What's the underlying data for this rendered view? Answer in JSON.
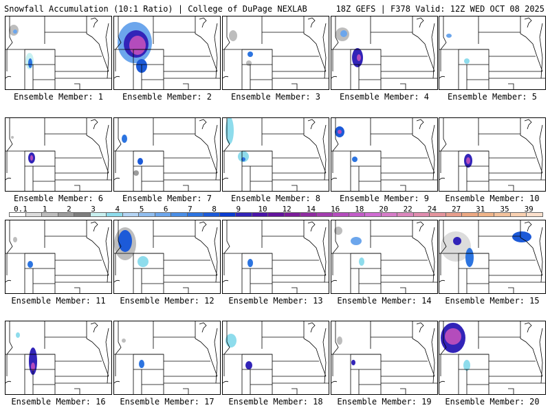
{
  "header": {
    "title": "Snowfall Accumulation (10:1 Ratio) | College of DuPage NEXLAB",
    "run_info": "18Z GEFS | F378 Valid: 12Z WED OCT 08 2025"
  },
  "legend": {
    "ticks": [
      "0.1",
      "1",
      "2",
      "3",
      "4",
      "5",
      "6",
      "7",
      "8",
      "9",
      "10",
      "12",
      "14",
      "16",
      "18",
      "20",
      "22",
      "24",
      "27",
      "31",
      "35",
      "39"
    ],
    "colors": [
      "#ffffff",
      "#dcdcdc",
      "#bdbdbd",
      "#9c9c9c",
      "#7d7d7d",
      "#c8f0f0",
      "#8edcec",
      "#b4d4f4",
      "#90bef0",
      "#6ca6ec",
      "#4a8ee6",
      "#2c74e0",
      "#1c5ad8",
      "#0a3cd0",
      "#3224b8",
      "#4a14a8",
      "#62149c",
      "#7a1c98",
      "#8e2ca0",
      "#a23cae",
      "#b44cbc",
      "#c25cc8",
      "#d06cd2",
      "#d67cc8",
      "#dc86bc",
      "#e08cae",
      "#e4949c",
      "#e89e8c",
      "#eca882",
      "#f0b488",
      "#f4c29c",
      "#f8d0b0",
      "#fce0cc"
    ]
  },
  "panels": [
    {
      "label": "Ensemble Member: 1"
    },
    {
      "label": "Ensemble Member: 2"
    },
    {
      "label": "Ensemble Member: 3"
    },
    {
      "label": "Ensemble Member: 4"
    },
    {
      "label": "Ensemble Member: 5"
    },
    {
      "label": "Ensemble Member: 6"
    },
    {
      "label": "Ensemble Member: 7"
    },
    {
      "label": "Ensemble Member: 8"
    },
    {
      "label": "Ensemble Member: 9"
    },
    {
      "label": "Ensemble Member: 10"
    },
    {
      "label": "Ensemble Member: 11"
    },
    {
      "label": "Ensemble Member: 12"
    },
    {
      "label": "Ensemble Member: 13"
    },
    {
      "label": "Ensemble Member: 14"
    },
    {
      "label": "Ensemble Member: 15"
    },
    {
      "label": "Ensemble Member: 16"
    },
    {
      "label": "Ensemble Member: 17"
    },
    {
      "label": "Ensemble Member: 18"
    },
    {
      "label": "Ensemble Member: 19"
    },
    {
      "label": "Ensemble Member: 20"
    }
  ]
}
